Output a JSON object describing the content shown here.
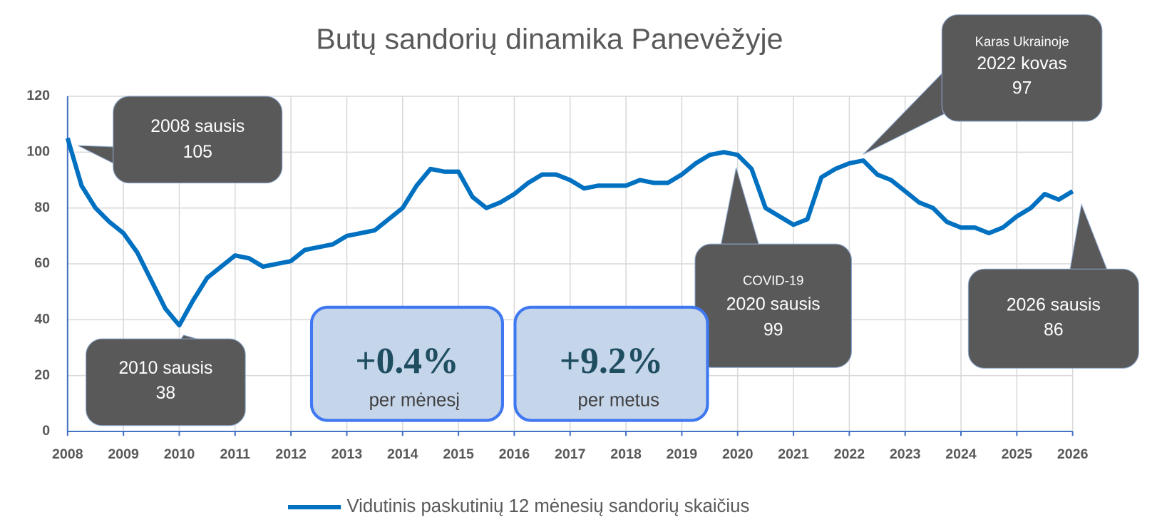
{
  "chart_data": {
    "type": "line",
    "title": "Butų sandorių dinamika Panevėžyje",
    "x": [
      2008,
      2008.25,
      2008.5,
      2008.75,
      2009,
      2009.25,
      2009.5,
      2009.75,
      2010,
      2010.25,
      2010.5,
      2010.75,
      2011,
      2011.25,
      2011.5,
      2011.75,
      2012,
      2012.25,
      2012.5,
      2012.75,
      2013,
      2013.25,
      2013.5,
      2013.75,
      2014,
      2014.25,
      2014.5,
      2014.75,
      2015,
      2015.25,
      2015.5,
      2015.75,
      2016,
      2016.25,
      2016.5,
      2016.75,
      2017,
      2017.25,
      2017.5,
      2017.75,
      2018,
      2018.25,
      2018.5,
      2018.75,
      2019,
      2019.25,
      2019.5,
      2019.75,
      2020,
      2020.25,
      2020.5,
      2020.75,
      2021,
      2021.25,
      2021.5,
      2021.75,
      2022,
      2022.25,
      2022.5,
      2022.75,
      2023,
      2023.25,
      2023.5,
      2023.75,
      2024,
      2024.25,
      2024.5,
      2024.75,
      2025,
      2025.25,
      2025.5,
      2025.75,
      2026
    ],
    "series": [
      {
        "name": "Vidutinis paskutinių 12 mėnesių sandorių skaičius",
        "color": "#0070c0",
        "values": [
          105,
          88,
          80,
          75,
          71,
          64,
          54,
          44,
          38,
          47,
          55,
          59,
          63,
          62,
          59,
          60,
          61,
          65,
          66,
          67,
          70,
          71,
          72,
          76,
          80,
          88,
          94,
          93,
          93,
          84,
          80,
          82,
          85,
          89,
          92,
          92,
          90,
          87,
          88,
          88,
          88,
          90,
          89,
          89,
          92,
          96,
          99,
          100,
          99,
          94,
          80,
          77,
          74,
          76,
          91,
          94,
          96,
          97,
          92,
          90,
          86,
          82,
          80,
          75,
          73,
          73,
          71,
          73,
          77,
          80,
          85,
          83,
          86
        ]
      }
    ],
    "xlim": [
      2008,
      2026
    ],
    "xticks": [
      2008,
      2009,
      2010,
      2011,
      2012,
      2013,
      2014,
      2015,
      2016,
      2017,
      2018,
      2019,
      2020,
      2021,
      2022,
      2023,
      2024,
      2025,
      2026
    ],
    "ylim": [
      0,
      120
    ],
    "yticks": [
      0,
      20,
      40,
      60,
      80,
      100,
      120
    ],
    "grid": true,
    "legend": "bottom",
    "annotations": [
      {
        "lines": [
          "2008 sausis",
          "105"
        ]
      },
      {
        "lines": [
          "2010 sausis",
          "38"
        ]
      },
      {
        "lines": [
          "COVID-19",
          "2020 sausis",
          "99"
        ]
      },
      {
        "lines": [
          "Karas Ukrainoje",
          "2022 kovas",
          "97"
        ]
      },
      {
        "lines": [
          "2026 sausis",
          "86"
        ]
      }
    ],
    "stats": [
      {
        "value": "+0.4%",
        "label": "per mėnesį"
      },
      {
        "value": "+9.2%",
        "label": "per metus"
      }
    ]
  }
}
